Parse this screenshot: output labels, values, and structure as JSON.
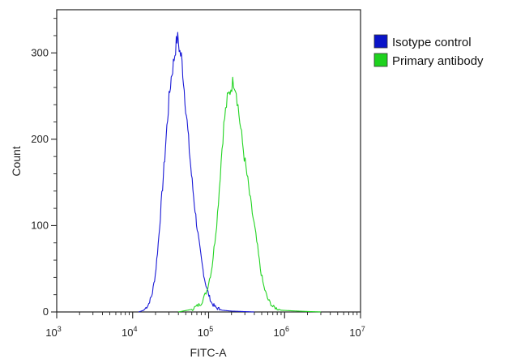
{
  "chart_data": {
    "type": "line",
    "xlabel": "FITC-A",
    "ylabel": "Count",
    "x_scale": "log",
    "xlim": [
      1000,
      10000000
    ],
    "ylim": [
      0,
      350
    ],
    "x_ticks": [
      {
        "base": "10",
        "exp": "3"
      },
      {
        "base": "10",
        "exp": "4"
      },
      {
        "base": "10",
        "exp": "5"
      },
      {
        "base": "10",
        "exp": "6"
      },
      {
        "base": "10",
        "exp": "7"
      }
    ],
    "y_ticks": [
      0,
      100,
      200,
      300
    ],
    "grid": false,
    "legend_position": "outside-top-right",
    "series": [
      {
        "name": "Isotype control",
        "color": "#1a1ad6",
        "swatch_color": "#0a14c8",
        "points": [
          [
            12000,
            0
          ],
          [
            14000,
            2
          ],
          [
            16000,
            8
          ],
          [
            18000,
            20
          ],
          [
            20000,
            45
          ],
          [
            22000,
            85
          ],
          [
            24000,
            130
          ],
          [
            26000,
            170
          ],
          [
            28000,
            210
          ],
          [
            30000,
            245
          ],
          [
            32000,
            270
          ],
          [
            34000,
            285
          ],
          [
            36000,
            300
          ],
          [
            38000,
            315
          ],
          [
            39000,
            318
          ],
          [
            40000,
            312
          ],
          [
            42000,
            300
          ],
          [
            44000,
            295
          ],
          [
            46000,
            275
          ],
          [
            48000,
            255
          ],
          [
            52000,
            220
          ],
          [
            56000,
            185
          ],
          [
            60000,
            155
          ],
          [
            65000,
            125
          ],
          [
            70000,
            100
          ],
          [
            76000,
            75
          ],
          [
            82000,
            55
          ],
          [
            90000,
            35
          ],
          [
            100000,
            20
          ],
          [
            110000,
            10
          ],
          [
            125000,
            5
          ],
          [
            150000,
            2
          ],
          [
            200000,
            1
          ],
          [
            400000,
            0
          ]
        ]
      },
      {
        "name": "Primary antibody",
        "color": "#22d422",
        "swatch_color": "#1ed21e",
        "points": [
          [
            40000,
            0
          ],
          [
            60000,
            3
          ],
          [
            80000,
            10
          ],
          [
            95000,
            25
          ],
          [
            110000,
            50
          ],
          [
            120000,
            80
          ],
          [
            130000,
            110
          ],
          [
            140000,
            150
          ],
          [
            150000,
            190
          ],
          [
            160000,
            220
          ],
          [
            175000,
            245
          ],
          [
            190000,
            255
          ],
          [
            200000,
            262
          ],
          [
            215000,
            268
          ],
          [
            230000,
            258
          ],
          [
            250000,
            230
          ],
          [
            275000,
            200
          ],
          [
            300000,
            175
          ],
          [
            330000,
            150
          ],
          [
            360000,
            125
          ],
          [
            400000,
            100
          ],
          [
            440000,
            75
          ],
          [
            480000,
            50
          ],
          [
            530000,
            30
          ],
          [
            600000,
            15
          ],
          [
            700000,
            6
          ],
          [
            900000,
            2
          ],
          [
            1500000,
            1
          ],
          [
            3000000,
            0
          ]
        ]
      }
    ]
  }
}
